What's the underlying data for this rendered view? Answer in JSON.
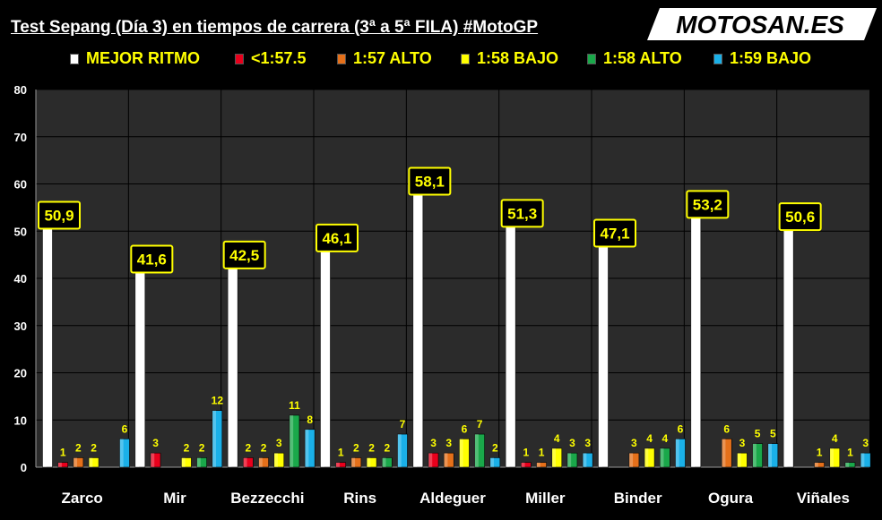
{
  "title": "Test Sepang (Día 3) en tiempos de carrera (3ª a 5ª FILA) #MotoGP",
  "logo_text": "MOTOSAN.ES",
  "chart_data": {
    "type": "bar",
    "title": "Test Sepang (Día 3) en tiempos de carrera (3ª a 5ª FILA) #MotoGP",
    "xlabel": "",
    "ylabel": "",
    "ylim": [
      0,
      80
    ],
    "yticks": [
      0,
      10,
      20,
      30,
      40,
      50,
      60,
      70,
      80
    ],
    "grid": true,
    "legend_position": "top",
    "categories": [
      "Zarco",
      "Mir",
      "Bezzecchi",
      "Rins",
      "Aldeguer",
      "Miller",
      "Binder",
      "Ogura",
      "Viñales"
    ],
    "series": [
      {
        "name": "MEJOR RITMO",
        "color": "#ffffff",
        "values": [
          50.9,
          41.6,
          42.5,
          46.1,
          58.1,
          51.3,
          47.1,
          53.2,
          50.6
        ],
        "labels": [
          "50,9",
          "41,6",
          "42,5",
          "46,1",
          "58,1",
          "51,3",
          "47,1",
          "53,2",
          "50,6"
        ]
      },
      {
        "name": "<1:57.5",
        "color": "#e8001c",
        "values": [
          1,
          3,
          2,
          1,
          3,
          1,
          0,
          0,
          0
        ],
        "labels": [
          "1",
          "3",
          "2",
          "1",
          "3",
          "1",
          "",
          "",
          ""
        ]
      },
      {
        "name": "1:57 ALTO",
        "color": "#e5701a",
        "values": [
          2,
          0,
          2,
          2,
          3,
          1,
          3,
          6,
          1
        ],
        "labels": [
          "2",
          "",
          "2",
          "2",
          "3",
          "1",
          "3",
          "6",
          "1"
        ]
      },
      {
        "name": "1:58 BAJO",
        "color": "#ffff00",
        "values": [
          2,
          2,
          3,
          2,
          6,
          4,
          4,
          3,
          4
        ],
        "labels": [
          "2",
          "2",
          "3",
          "2",
          "6",
          "4",
          "4",
          "3",
          "4"
        ]
      },
      {
        "name": "1:58 ALTO",
        "color": "#1aa84a",
        "values": [
          0,
          2,
          11,
          2,
          7,
          3,
          4,
          5,
          1
        ],
        "labels": [
          "",
          "2",
          "11",
          "2",
          "7",
          "3",
          "4",
          "5",
          "1"
        ]
      },
      {
        "name": "1:59 BAJO",
        "color": "#1ab0e8",
        "values": [
          6,
          12,
          8,
          7,
          2,
          3,
          6,
          5,
          3
        ],
        "labels": [
          "6",
          "12",
          "8",
          "7",
          "2",
          "3",
          "6",
          "5",
          "3"
        ]
      }
    ]
  },
  "colors": {
    "plot_background": "#2b2b2b",
    "label_text": "#ffff00",
    "box_border": "#000000"
  }
}
